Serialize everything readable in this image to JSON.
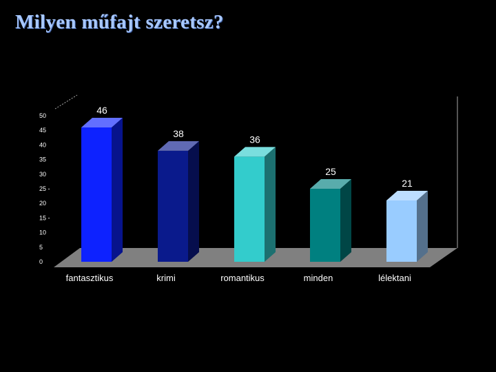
{
  "title": "Milyen műfajt szeretsz?",
  "chart_data": {
    "type": "bar",
    "title": "Milyen műfajt szeretsz?",
    "categories": [
      "fantasztikus",
      "krimi",
      "romantikus",
      "minden",
      "lélektani"
    ],
    "values": [
      46,
      38,
      36,
      25,
      21
    ],
    "data_labels": [
      "46",
      "38",
      "36",
      "25",
      "21"
    ],
    "xlabel": "",
    "ylabel": "",
    "ylim": [
      0,
      50
    ],
    "yticks": [
      0,
      5,
      10,
      15,
      20,
      25,
      30,
      35,
      40,
      45,
      50
    ],
    "ytick_labels": [
      "0",
      "5",
      "10",
      "15 -",
      "20",
      "25 -",
      "30",
      "35",
      "40",
      "45",
      "50"
    ],
    "grid": false,
    "legend": "none",
    "bar_colors": [
      "#0d22ff",
      "#0a1a8c",
      "#33cccc",
      "#008080",
      "#99ccff"
    ],
    "floor_color": "#808080"
  }
}
